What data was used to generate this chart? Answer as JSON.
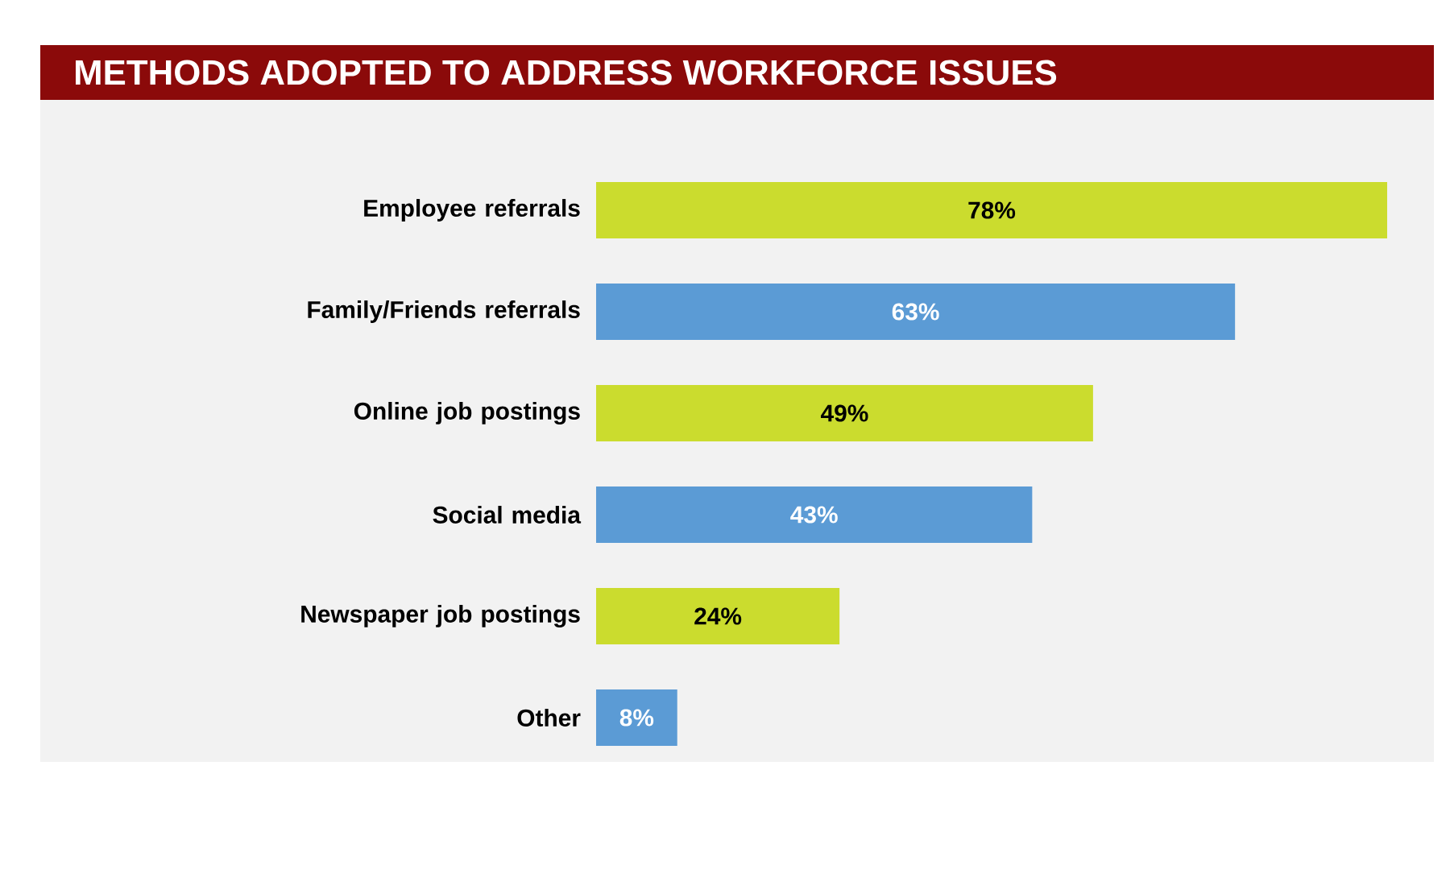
{
  "chart_data": {
    "type": "bar",
    "orientation": "horizontal",
    "title": "METHODS ADOPTED TO ADDRESS WORKFORCE ISSUES",
    "categories": [
      "Employee referrals",
      "Family/Friends referrals",
      "Online job postings",
      "Social media",
      "Newspaper job postings",
      "Other"
    ],
    "values": [
      78,
      63,
      49,
      43,
      24,
      8
    ],
    "colors": [
      "#cbdc2e",
      "#5b9bd5",
      "#cbdc2e",
      "#5b9bd5",
      "#cbdc2e",
      "#5b9bd5"
    ],
    "value_labels": [
      "78%",
      "63%",
      "49%",
      "43%",
      "24%",
      "8%"
    ]
  }
}
